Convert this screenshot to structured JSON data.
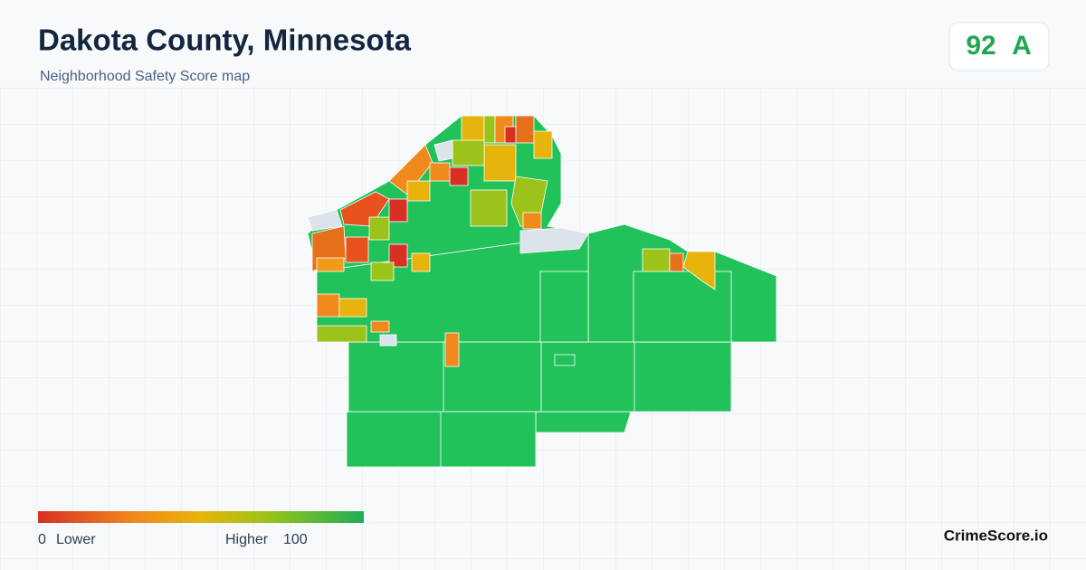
{
  "header": {
    "title": "Dakota County, Minnesota",
    "subtitle": "Neighborhood Safety Score map"
  },
  "score": {
    "value": "92",
    "grade": "A"
  },
  "legend": {
    "min": "0",
    "low_label": "Lower",
    "high_label": "Higher",
    "max": "100"
  },
  "brand": "CrimeScore.io"
}
